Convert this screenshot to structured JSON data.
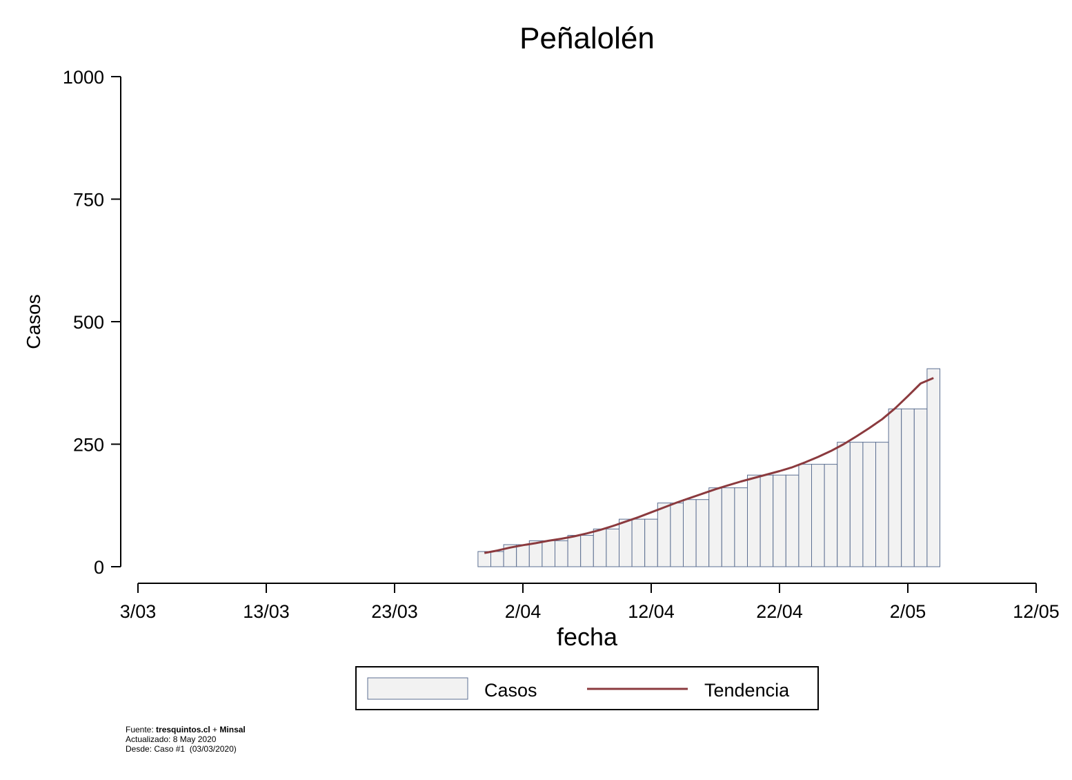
{
  "chart_data": {
    "type": "bar",
    "title": "Peñalolén",
    "xlabel": "fecha",
    "ylabel": "Casos",
    "ylim": [
      0,
      1000
    ],
    "yticks": [
      0,
      250,
      500,
      750,
      1000
    ],
    "xlim": [
      "2020-03-03",
      "2020-05-12"
    ],
    "xticks": [
      {
        "date": "2020-03-03",
        "label": "3/03"
      },
      {
        "date": "2020-03-13",
        "label": "13/03"
      },
      {
        "date": "2020-03-23",
        "label": "23/03"
      },
      {
        "date": "2020-04-02",
        "label": "2/04"
      },
      {
        "date": "2020-04-12",
        "label": "12/04"
      },
      {
        "date": "2020-04-22",
        "label": "22/04"
      },
      {
        "date": "2020-05-02",
        "label": "2/05"
      },
      {
        "date": "2020-05-12",
        "label": "12/05"
      }
    ],
    "grid": false,
    "legend_position": "bottom",
    "series": [
      {
        "name": "Casos",
        "kind": "bar",
        "color": "#f2f2f2",
        "edge_color": "#5b6e91",
        "points": [
          {
            "date": "2020-03-30",
            "value": 31
          },
          {
            "date": "2020-03-31",
            "value": 31
          },
          {
            "date": "2020-04-01",
            "value": 45
          },
          {
            "date": "2020-04-02",
            "value": 45
          },
          {
            "date": "2020-04-03",
            "value": 53
          },
          {
            "date": "2020-04-04",
            "value": 53
          },
          {
            "date": "2020-04-05",
            "value": 53
          },
          {
            "date": "2020-04-06",
            "value": 64
          },
          {
            "date": "2020-04-07",
            "value": 64
          },
          {
            "date": "2020-04-08",
            "value": 77
          },
          {
            "date": "2020-04-09",
            "value": 77
          },
          {
            "date": "2020-04-10",
            "value": 97
          },
          {
            "date": "2020-04-11",
            "value": 97
          },
          {
            "date": "2020-04-12",
            "value": 97
          },
          {
            "date": "2020-04-13",
            "value": 130
          },
          {
            "date": "2020-04-14",
            "value": 130
          },
          {
            "date": "2020-04-15",
            "value": 137
          },
          {
            "date": "2020-04-16",
            "value": 137
          },
          {
            "date": "2020-04-17",
            "value": 161
          },
          {
            "date": "2020-04-18",
            "value": 161
          },
          {
            "date": "2020-04-19",
            "value": 161
          },
          {
            "date": "2020-04-20",
            "value": 187
          },
          {
            "date": "2020-04-21",
            "value": 187
          },
          {
            "date": "2020-04-22",
            "value": 187
          },
          {
            "date": "2020-04-23",
            "value": 187
          },
          {
            "date": "2020-04-24",
            "value": 209
          },
          {
            "date": "2020-04-25",
            "value": 209
          },
          {
            "date": "2020-04-26",
            "value": 209
          },
          {
            "date": "2020-04-27",
            "value": 254
          },
          {
            "date": "2020-04-28",
            "value": 254
          },
          {
            "date": "2020-04-29",
            "value": 254
          },
          {
            "date": "2020-04-30",
            "value": 254
          },
          {
            "date": "2020-05-01",
            "value": 322
          },
          {
            "date": "2020-05-02",
            "value": 322
          },
          {
            "date": "2020-05-03",
            "value": 322
          },
          {
            "date": "2020-05-04",
            "value": 404
          }
        ]
      },
      {
        "name": "Tendencia",
        "kind": "line",
        "color": "#8b3a3e",
        "points": [
          {
            "date": "2020-03-30",
            "value": 28
          },
          {
            "date": "2020-03-31",
            "value": 33
          },
          {
            "date": "2020-04-01",
            "value": 39
          },
          {
            "date": "2020-04-02",
            "value": 44
          },
          {
            "date": "2020-04-03",
            "value": 48
          },
          {
            "date": "2020-04-04",
            "value": 53
          },
          {
            "date": "2020-04-05",
            "value": 57
          },
          {
            "date": "2020-04-06",
            "value": 62
          },
          {
            "date": "2020-04-07",
            "value": 68
          },
          {
            "date": "2020-04-08",
            "value": 75
          },
          {
            "date": "2020-04-09",
            "value": 83
          },
          {
            "date": "2020-04-10",
            "value": 92
          },
          {
            "date": "2020-04-11",
            "value": 101
          },
          {
            "date": "2020-04-12",
            "value": 111
          },
          {
            "date": "2020-04-13",
            "value": 121
          },
          {
            "date": "2020-04-14",
            "value": 131
          },
          {
            "date": "2020-04-15",
            "value": 140
          },
          {
            "date": "2020-04-16",
            "value": 149
          },
          {
            "date": "2020-04-17",
            "value": 158
          },
          {
            "date": "2020-04-18",
            "value": 166
          },
          {
            "date": "2020-04-19",
            "value": 174
          },
          {
            "date": "2020-04-20",
            "value": 181
          },
          {
            "date": "2020-04-21",
            "value": 188
          },
          {
            "date": "2020-04-22",
            "value": 195
          },
          {
            "date": "2020-04-23",
            "value": 203
          },
          {
            "date": "2020-04-24",
            "value": 213
          },
          {
            "date": "2020-04-25",
            "value": 224
          },
          {
            "date": "2020-04-26",
            "value": 236
          },
          {
            "date": "2020-04-27",
            "value": 250
          },
          {
            "date": "2020-04-28",
            "value": 266
          },
          {
            "date": "2020-04-29",
            "value": 283
          },
          {
            "date": "2020-04-30",
            "value": 301
          },
          {
            "date": "2020-05-01",
            "value": 323
          },
          {
            "date": "2020-05-02",
            "value": 348
          },
          {
            "date": "2020-05-03",
            "value": 374
          },
          {
            "date": "2020-05-04",
            "value": 385
          }
        ]
      }
    ]
  },
  "footnote": {
    "line1_prefix": "Fuente: ",
    "line1_bold1": "tresquintos.cl",
    "line1_mid": " + ",
    "line1_bold2": "Minsal",
    "line2": "Actualizado: 8 May 2020",
    "line3": "Desde: Caso #1  (03/03/2020)"
  }
}
